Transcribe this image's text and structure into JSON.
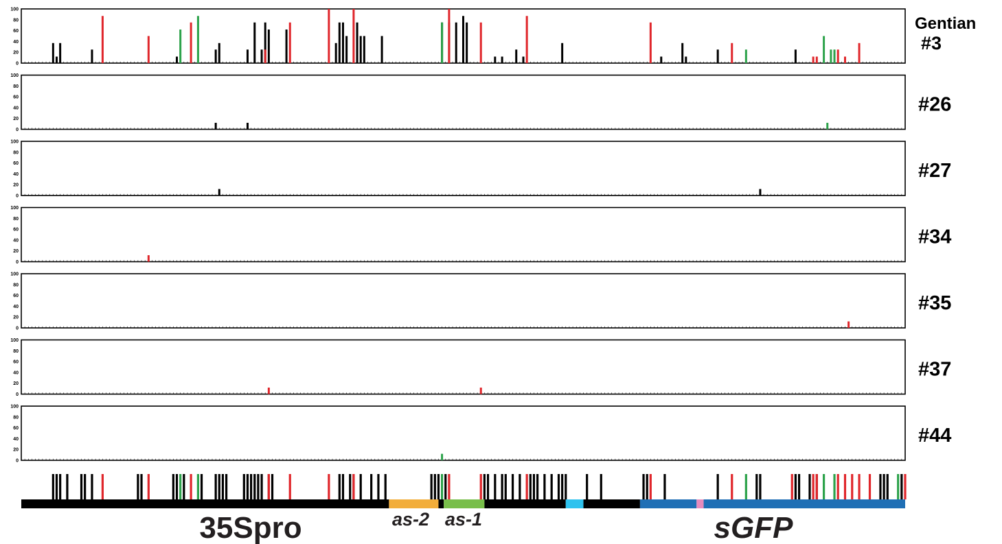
{
  "colors": {
    "cg": "#000000",
    "chg": "#2ca24a",
    "chh": "#e0262b",
    "as2": "#f2ad3a",
    "as1": "#78be4a",
    "linker": "#2ec2ee",
    "sgfp": "#1f6fb5",
    "sgfp_mark": "#e78bbd"
  },
  "chart_data": {
    "type": "bar",
    "x_range": [
      0,
      250
    ],
    "ylim": [
      0,
      100
    ],
    "yticks": [
      "0",
      "20",
      "40",
      "60",
      "80",
      "100"
    ],
    "grid": false,
    "panels": [
      {
        "id": "gentian3",
        "label_top": "Gentian",
        "label_bottom": "#3",
        "series": [
          {
            "context": "cg",
            "x": [
              9,
              10,
              11,
              20,
              44,
              55,
              56,
              64,
              66,
              68,
              69,
              70,
              75,
              89,
              90,
              91,
              92,
              95,
              96,
              97,
              102,
              119,
              121,
              123,
              125,
              126,
              134,
              136,
              140,
              142,
              153,
              181,
              187,
              188,
              197,
              219
            ],
            "y": [
              37,
              12,
              37,
              25,
              12,
              25,
              37,
              25,
              75,
              25,
              75,
              62,
              62,
              37,
              75,
              75,
              50,
              75,
              50,
              50,
              50,
              75,
              75,
              75,
              87,
              75,
              12,
              12,
              25,
              12,
              37,
              12,
              37,
              12,
              25,
              25
            ]
          },
          {
            "context": "chg",
            "x": [
              45,
              50,
              119,
              205,
              227,
              229,
              230
            ],
            "y": [
              62,
              87,
              75,
              25,
              50,
              25,
              25
            ]
          },
          {
            "context": "chh",
            "x": [
              23,
              36,
              48,
              69,
              76,
              87,
              94,
              121,
              130,
              143,
              178,
              201,
              224,
              225,
              231,
              233,
              237
            ],
            "y": [
              87,
              50,
              75,
              25,
              75,
              100,
              100,
              100,
              75,
              87,
              75,
              37,
              12,
              12,
              25,
              12,
              37
            ]
          }
        ]
      },
      {
        "id": "line26",
        "label_bottom": "#26",
        "series": [
          {
            "context": "cg",
            "x": [
              55,
              64
            ],
            "y": [
              12,
              12
            ]
          },
          {
            "context": "chg",
            "x": [
              228
            ],
            "y": [
              12
            ]
          }
        ]
      },
      {
        "id": "line27",
        "label_bottom": "#27",
        "series": [
          {
            "context": "cg",
            "x": [
              56,
              209
            ],
            "y": [
              12,
              12
            ]
          }
        ]
      },
      {
        "id": "line34",
        "label_bottom": "#34",
        "series": [
          {
            "context": "chh",
            "x": [
              36
            ],
            "y": [
              12
            ]
          }
        ]
      },
      {
        "id": "line35",
        "label_bottom": "#35",
        "series": [
          {
            "context": "chh",
            "x": [
              234
            ],
            "y": [
              12
            ]
          }
        ]
      },
      {
        "id": "line37",
        "label_bottom": "#37",
        "series": [
          {
            "context": "chh",
            "x": [
              70,
              130
            ],
            "y": [
              12,
              12
            ]
          }
        ]
      },
      {
        "id": "line44",
        "label_bottom": "#44",
        "series": [
          {
            "context": "chg",
            "x": [
              119
            ],
            "y": [
              12
            ]
          }
        ]
      }
    ],
    "site_map": {
      "cg": [
        9,
        10,
        11,
        13,
        17,
        18,
        20,
        33,
        34,
        43,
        44,
        46,
        51,
        55,
        56,
        57,
        58,
        63,
        64,
        65,
        66,
        67,
        68,
        70,
        71,
        90,
        91,
        93,
        94,
        96,
        99,
        101,
        103,
        116,
        117,
        118,
        120,
        131,
        132,
        134,
        136,
        137,
        139,
        141,
        144,
        145,
        146,
        148,
        150,
        152,
        153,
        154,
        160,
        164,
        176,
        177,
        182,
        197,
        208,
        209,
        219,
        220,
        223,
        225,
        243,
        244,
        245,
        249
      ],
      "chg": [
        45,
        50,
        119,
        205,
        227,
        230,
        248
      ],
      "chh": [
        23,
        36,
        48,
        70,
        76,
        87,
        94,
        121,
        130,
        143,
        178,
        201,
        218,
        224,
        225,
        231,
        233,
        235,
        237,
        240,
        250
      ]
    },
    "regions": [
      {
        "start": 0,
        "end": 104,
        "color_key": "cg",
        "label": "35Spro"
      },
      {
        "start": 104,
        "end": 118,
        "color_key": "as2",
        "label": "as-2"
      },
      {
        "start": 118,
        "end": 119.5,
        "color_key": "cg",
        "label": ""
      },
      {
        "start": 119.5,
        "end": 131,
        "color_key": "as1",
        "label": "as-1"
      },
      {
        "start": 131,
        "end": 154,
        "color_key": "cg",
        "label": ""
      },
      {
        "start": 154,
        "end": 159,
        "color_key": "linker",
        "label": ""
      },
      {
        "start": 159,
        "end": 175,
        "color_key": "cg",
        "label": ""
      },
      {
        "start": 175,
        "end": 191,
        "color_key": "sgfp",
        "label": ""
      },
      {
        "start": 191,
        "end": 193,
        "color_key": "sgfp_mark",
        "label": ""
      },
      {
        "start": 193,
        "end": 250,
        "color_key": "sgfp",
        "label": "sGFP"
      }
    ]
  }
}
